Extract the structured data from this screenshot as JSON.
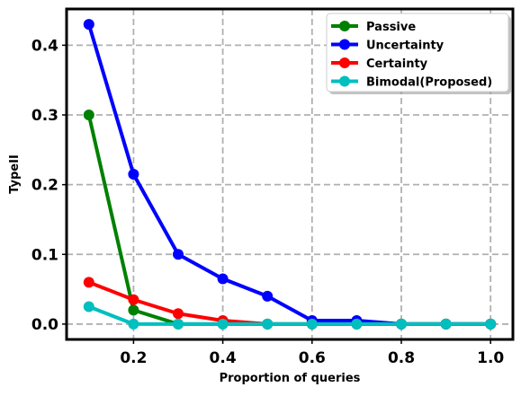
{
  "chart_data": {
    "type": "line",
    "title": "",
    "xlabel": "Proportion of queries",
    "ylabel": "TypeII",
    "xlim": [
      0.05,
      1.05
    ],
    "ylim": [
      -0.022,
      0.452
    ],
    "xticks": [
      0.2,
      0.4,
      0.6,
      0.8,
      1.0
    ],
    "xtick_labels": [
      "0.2",
      "0.4",
      "0.6",
      "0.8",
      "1.0"
    ],
    "yticks": [
      0.0,
      0.1,
      0.2,
      0.3,
      0.4
    ],
    "ytick_labels": [
      "0.0",
      "0.1",
      "0.2",
      "0.3",
      "0.4"
    ],
    "grid": true,
    "legend_position": "top-right",
    "x": [
      0.1,
      0.2,
      0.3,
      0.4,
      0.5,
      0.6,
      0.7,
      0.8,
      0.9,
      1.0
    ],
    "series": [
      {
        "name": "Passive",
        "color": "#008000",
        "values": [
          0.3,
          0.02,
          0.0,
          0.0,
          0.0,
          0.0,
          0.0,
          0.0,
          0.0,
          0.0
        ]
      },
      {
        "name": "Uncertainty",
        "color": "#0000ff",
        "values": [
          0.43,
          0.215,
          0.1,
          0.065,
          0.04,
          0.005,
          0.005,
          0.0,
          0.0,
          0.0
        ]
      },
      {
        "name": "Certainty",
        "color": "#ff0000",
        "values": [
          0.06,
          0.035,
          0.015,
          0.005,
          0.0,
          0.0,
          0.0,
          0.0,
          0.0,
          0.0
        ]
      },
      {
        "name": "Bimodal(Proposed)",
        "color": "#00bfbf",
        "values": [
          0.025,
          0.0,
          0.0,
          0.0,
          0.0,
          0.0,
          0.0,
          0.0,
          0.0,
          0.0
        ]
      }
    ]
  }
}
